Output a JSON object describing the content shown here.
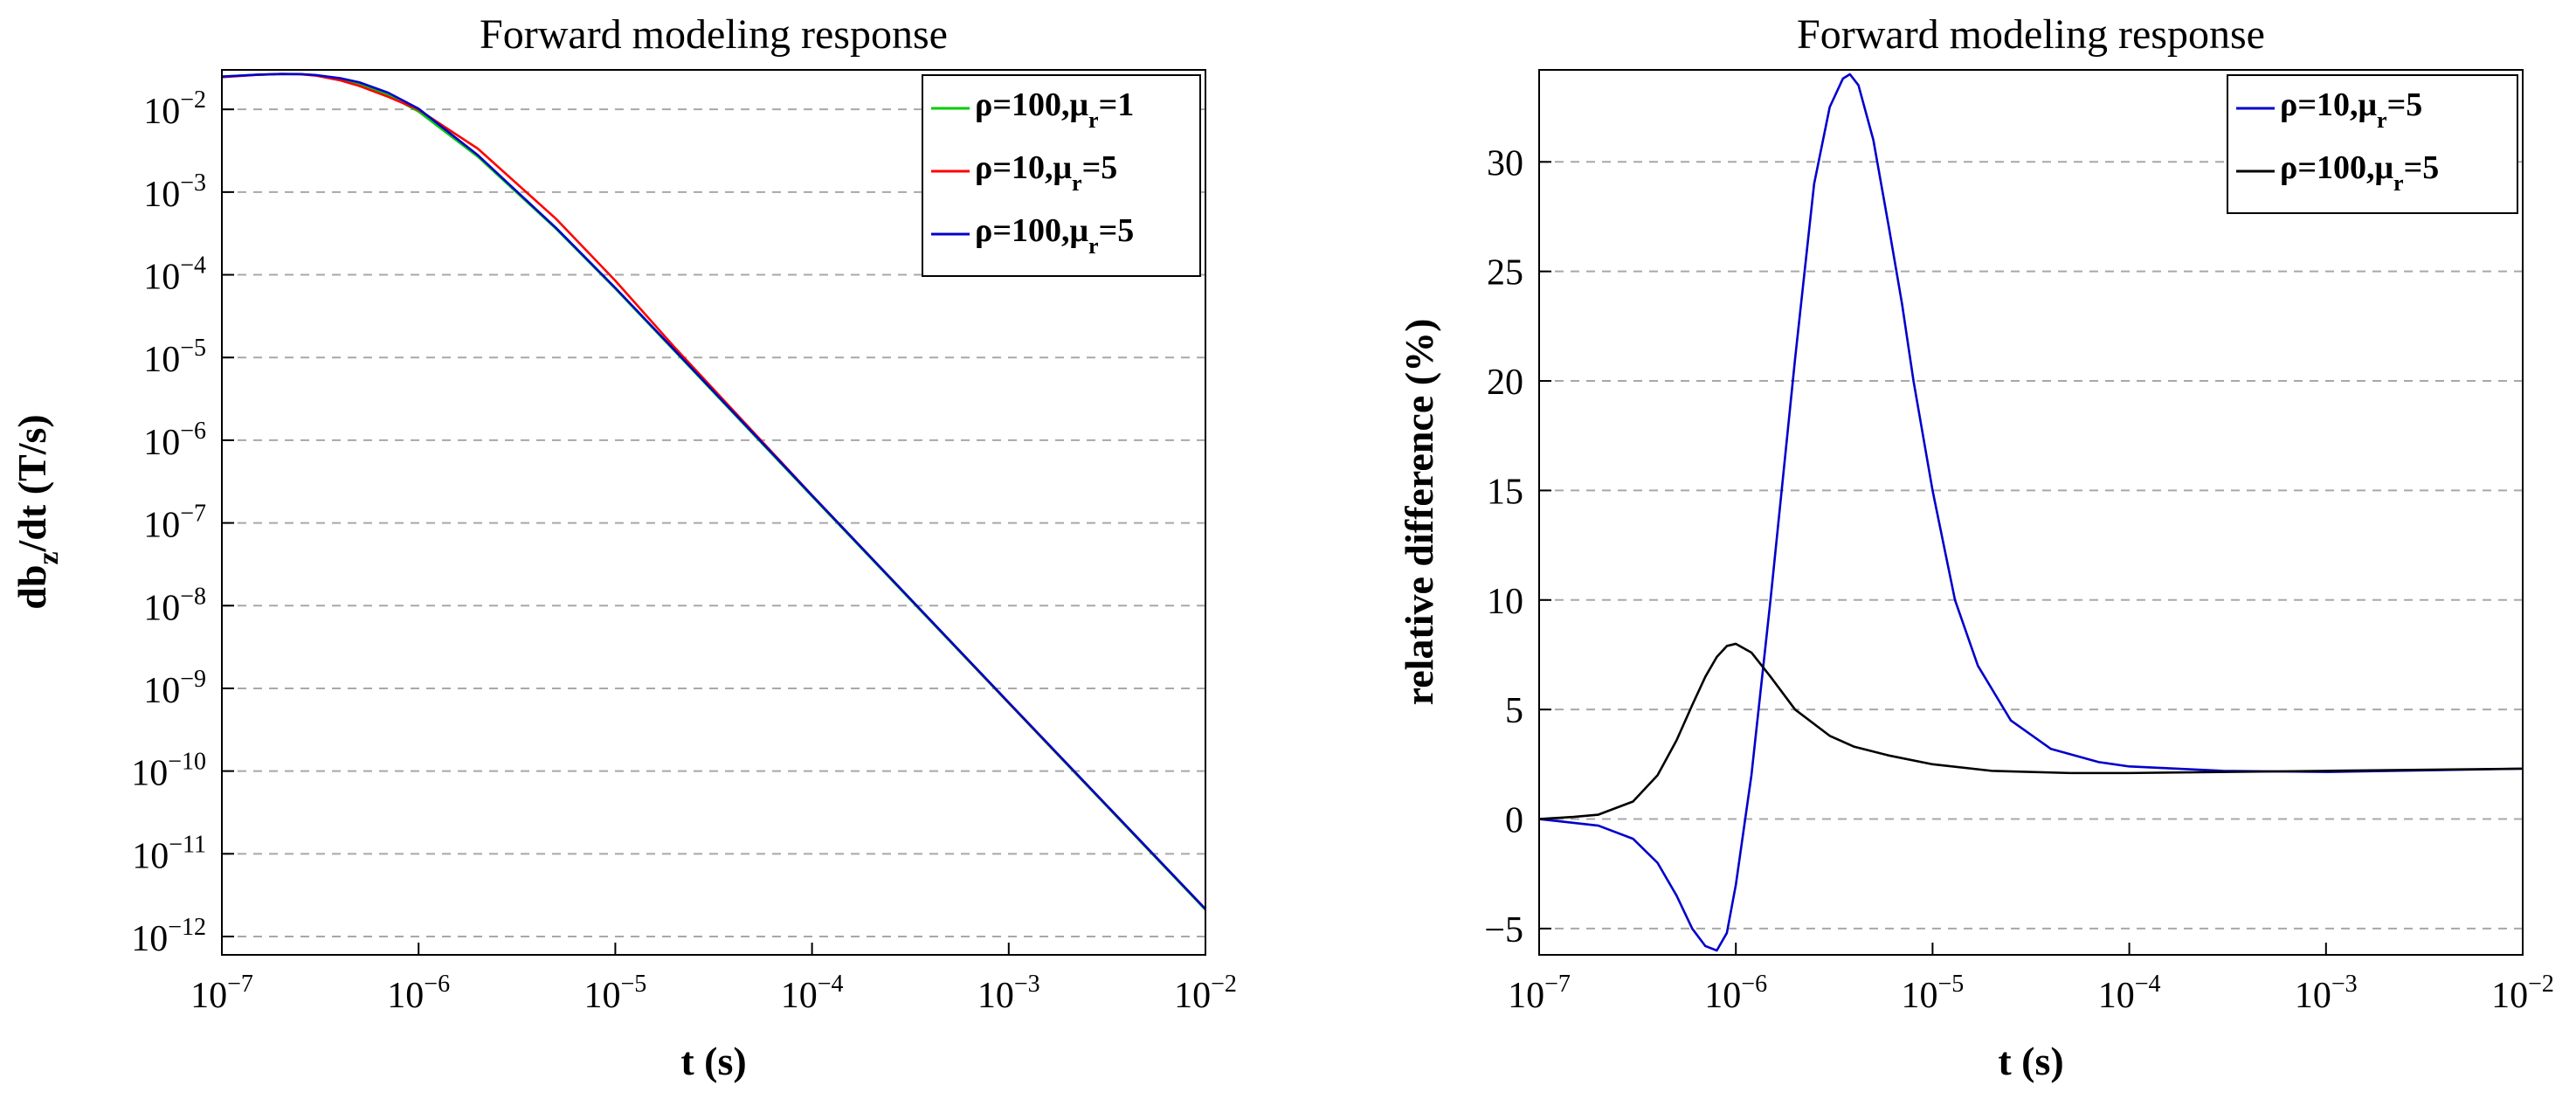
{
  "chart_data": [
    {
      "type": "line",
      "title": "Forward modeling response",
      "xlabel": "t (s)",
      "ylabel": "db_z/dt (T/s)",
      "x_scale": "log",
      "y_scale": "log",
      "xlim": [
        1e-07,
        0.01
      ],
      "ylim": [
        6e-13,
        0.03
      ],
      "x_ticks": [
        {
          "base": "10",
          "exp": "−7"
        },
        {
          "base": "10",
          "exp": "−6"
        },
        {
          "base": "10",
          "exp": "−5"
        },
        {
          "base": "10",
          "exp": "−4"
        },
        {
          "base": "10",
          "exp": "−3"
        },
        {
          "base": "10",
          "exp": "−2"
        }
      ],
      "y_ticks": [
        {
          "base": "10",
          "exp": "−2"
        },
        {
          "base": "10",
          "exp": "−3"
        },
        {
          "base": "10",
          "exp": "−4"
        },
        {
          "base": "10",
          "exp": "−5"
        },
        {
          "base": "10",
          "exp": "−6"
        },
        {
          "base": "10",
          "exp": "−7"
        },
        {
          "base": "10",
          "exp": "−8"
        },
        {
          "base": "10",
          "exp": "−9"
        },
        {
          "base": "10",
          "exp": "−10"
        },
        {
          "base": "10",
          "exp": "−11"
        },
        {
          "base": "10",
          "exp": "−12"
        }
      ],
      "grid": "horizontal dashed",
      "legend_position": "top-right",
      "series": [
        {
          "name": "ρ=100,μr=1",
          "label": "ρ=100,μ",
          "sub": "r",
          "suffix": "=1",
          "color": "#00cc00",
          "x": [
            1e-07,
            1.5e-07,
            2e-07,
            2.5e-07,
            3e-07,
            4e-07,
            5e-07,
            7e-07,
            1e-06,
            2e-06,
            5e-06,
            1e-05,
            2e-05,
            0.0001,
            0.001,
            0.01
          ],
          "y": [
            0.0249,
            0.0262,
            0.0268,
            0.0266,
            0.0258,
            0.0232,
            0.0203,
            0.0149,
            0.0094,
            0.00268,
            0.000359,
            6.8e-05,
            1.2e-05,
            2.1e-07,
            6.6e-10,
            2.1e-12
          ]
        },
        {
          "name": "ρ=10,μr=5",
          "label": "ρ=10,μ",
          "sub": "r",
          "suffix": "=5",
          "color": "#ff0000",
          "x": [
            1e-07,
            1.5e-07,
            2e-07,
            2.5e-07,
            3e-07,
            4e-07,
            5e-07,
            7e-07,
            1e-06,
            2e-06,
            5e-06,
            1e-05,
            2e-05,
            0.0001,
            0.001,
            0.01
          ],
          "y": [
            0.0245,
            0.0261,
            0.0268,
            0.0266,
            0.0256,
            0.0224,
            0.0192,
            0.0142,
            0.0099,
            0.00335,
            0.000474,
            8.5e-05,
            1.33e-05,
            2.16e-07,
            6.7e-10,
            2.15e-12
          ]
        },
        {
          "name": "ρ=100,μr=5",
          "label": "ρ=100,μ",
          "sub": "r",
          "suffix": "=5",
          "color": "#0000cc",
          "x": [
            1e-07,
            1.5e-07,
            2e-07,
            2.5e-07,
            3e-07,
            4e-07,
            5e-07,
            7e-07,
            1e-06,
            2e-06,
            5e-06,
            1e-05,
            2e-05,
            0.0001,
            0.001,
            0.01
          ],
          "y": [
            0.0249,
            0.0262,
            0.0268,
            0.0267,
            0.026,
            0.0238,
            0.0212,
            0.0159,
            0.0102,
            0.0028,
            0.000368,
            6.95e-05,
            1.23e-05,
            2.15e-07,
            6.75e-10,
            2.15e-12
          ]
        }
      ]
    },
    {
      "type": "line",
      "title": "Forward modeling response",
      "xlabel": "t (s)",
      "ylabel": "relative difference (%)",
      "x_scale": "log",
      "y_scale": "linear",
      "xlim": [
        1e-07,
        0.01
      ],
      "ylim": [
        -6.2,
        34.2
      ],
      "x_ticks": [
        {
          "base": "10",
          "exp": "−7"
        },
        {
          "base": "10",
          "exp": "−6"
        },
        {
          "base": "10",
          "exp": "−5"
        },
        {
          "base": "10",
          "exp": "−4"
        },
        {
          "base": "10",
          "exp": "−3"
        },
        {
          "base": "10",
          "exp": "−2"
        }
      ],
      "y_ticks": [
        "30",
        "25",
        "20",
        "15",
        "10",
        "5",
        "0",
        "−5"
      ],
      "y_tick_values": [
        30,
        25,
        20,
        15,
        10,
        5,
        0,
        -5
      ],
      "grid": "horizontal dashed",
      "legend_position": "top-right",
      "series": [
        {
          "name": "ρ=10,μr=5",
          "label": "ρ=10,μ",
          "sub": "r",
          "suffix": "=5",
          "color": "#0000cc",
          "x": [
            1e-07,
            2e-07,
            3e-07,
            4e-07,
            5e-07,
            6e-07,
            7e-07,
            8e-07,
            9e-07,
            1e-06,
            1.2e-06,
            1.5e-06,
            2e-06,
            2.5e-06,
            3e-06,
            3.5e-06,
            3.8e-06,
            4.2e-06,
            5e-06,
            6e-06,
            7e-06,
            8e-06,
            1e-05,
            1.3e-05,
            1.7e-05,
            2.5e-05,
            4e-05,
            7e-05,
            0.0001,
            0.0003,
            0.001,
            0.01
          ],
          "y": [
            0,
            -0.3,
            -0.9,
            -2.0,
            -3.5,
            -5.0,
            -5.8,
            -6.0,
            -5.2,
            -3.0,
            2.0,
            10.0,
            21.0,
            29.0,
            32.5,
            33.8,
            34.0,
            33.5,
            31.0,
            27.0,
            23.5,
            20.0,
            15.0,
            10.0,
            7.0,
            4.5,
            3.2,
            2.6,
            2.4,
            2.2,
            2.15,
            2.3
          ]
        },
        {
          "name": "ρ=100,μr=5",
          "label": "ρ=100,μ",
          "sub": "r",
          "suffix": "=5",
          "color": "#000000",
          "x": [
            1e-07,
            1.5e-07,
            2e-07,
            3e-07,
            4e-07,
            5e-07,
            6e-07,
            7e-07,
            8e-07,
            9e-07,
            1e-06,
            1.2e-06,
            1.5e-06,
            2e-06,
            3e-06,
            4e-06,
            6e-06,
            1e-05,
            2e-05,
            5e-05,
            0.0001,
            0.001,
            0.01
          ],
          "y": [
            0,
            0.1,
            0.2,
            0.8,
            2.0,
            3.6,
            5.2,
            6.5,
            7.4,
            7.9,
            8.0,
            7.6,
            6.5,
            5.0,
            3.8,
            3.3,
            2.9,
            2.5,
            2.2,
            2.1,
            2.1,
            2.2,
            2.3
          ]
        }
      ]
    }
  ]
}
